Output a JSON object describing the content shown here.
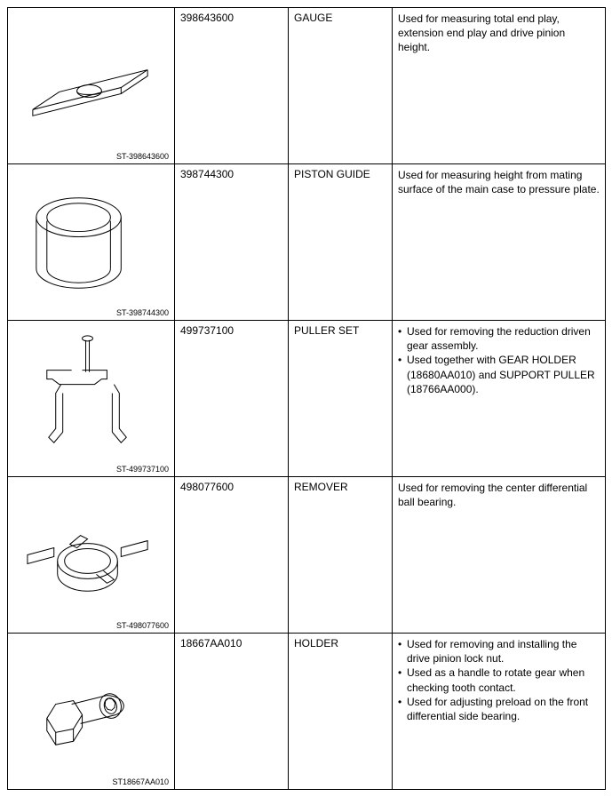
{
  "table": {
    "stroke_color": "#000000",
    "line_width": 1,
    "rows": [
      {
        "caption": "ST-398643600",
        "part_number": "398643600",
        "name": "GAUGE",
        "description_type": "plain",
        "description": "Used for measuring total end play, extension end play and drive pinion height."
      },
      {
        "caption": "ST-398744300",
        "part_number": "398744300",
        "name": "PISTON GUIDE",
        "description_type": "plain",
        "description": "Used for measuring height from mating surface of the main case to pressure plate."
      },
      {
        "caption": "ST-499737100",
        "part_number": "499737100",
        "name": "PULLER SET",
        "description_type": "bullets",
        "bullets": [
          "Used for removing the reduction driven gear assembly.",
          "Used together with GEAR HOLDER (18680AA010) and SUPPORT PULLER (18766AA000)."
        ]
      },
      {
        "caption": "ST-498077600",
        "part_number": "498077600",
        "name": "REMOVER",
        "description_type": "plain",
        "description": "Used for removing the center differential ball bearing."
      },
      {
        "caption": "ST18667AA010",
        "part_number": "18667AA010",
        "name": "HOLDER",
        "description_type": "bullets",
        "bullets": [
          "Used for removing and installing the drive pinion lock nut.",
          "Used as a handle to rotate gear when checking tooth contact.",
          "Used for adjusting preload on the front differential side bearing."
        ]
      }
    ]
  }
}
